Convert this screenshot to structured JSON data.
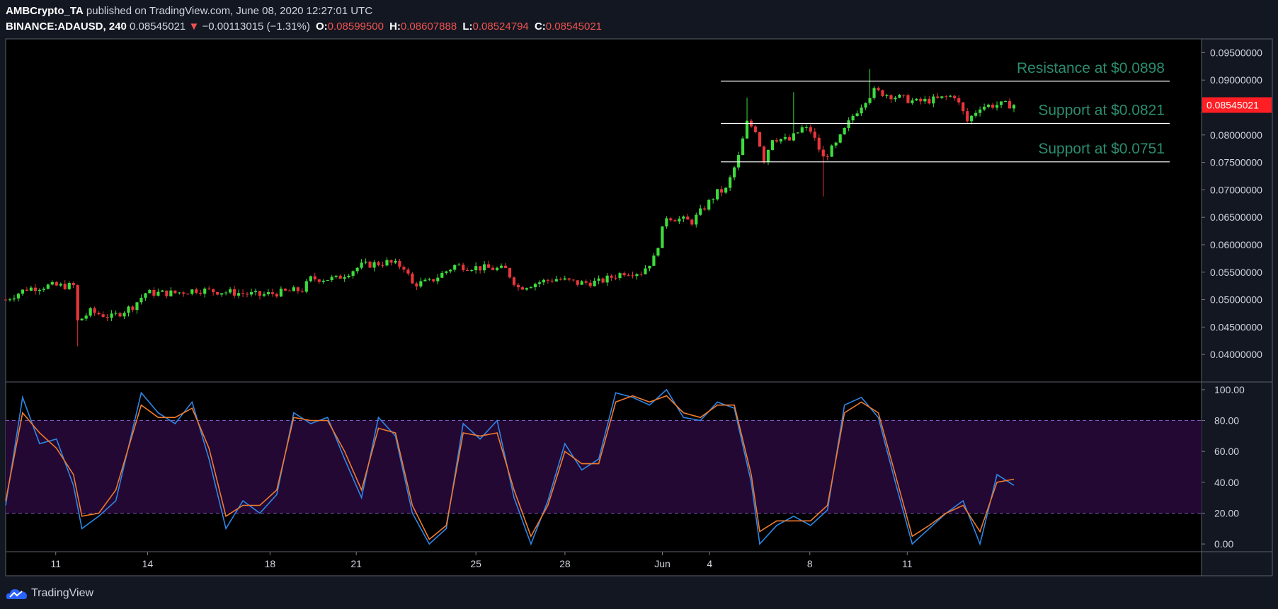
{
  "header": {
    "author": "AMBCrypto_TA",
    "published": "published on TradingView.com, June 08, 2020 12:27:01 UTC",
    "symbol": "BINANCE:ADAUSD, 240",
    "last": "0.08545021",
    "arrow": "▼",
    "change": "−0.00113015 (−1.31%)",
    "o_label": "O:",
    "o_value": "0.08599500",
    "h_label": "H:",
    "h_value": "0.08607888",
    "l_label": "L:",
    "l_value": "0.08524794",
    "c_label": "C:",
    "c_value": "0.08545021"
  },
  "footer": {
    "brand": "TradingView",
    "icon": "tradingview-cloud-icon"
  },
  "colors": {
    "background": "#131722",
    "up": "#3ddc3d",
    "down": "#e8353b",
    "k_line": "#2d87e6",
    "d_line": "#f07a2c",
    "band": "#230833",
    "level_text": "#2b8c6e",
    "price_tag": "#ff1e23"
  },
  "chart_data": [
    {
      "type": "candlestick",
      "symbol": "ADAUSD",
      "interval": "240",
      "x_tick_labels": [
        "11",
        "14",
        "18",
        "21",
        "25",
        "28",
        "Jun",
        "4",
        "8",
        "11"
      ],
      "y_tick_labels": [
        "0.09500000",
        "0.09000000",
        "0.08500000",
        "0.08000000",
        "0.07500000",
        "0.07000000",
        "0.06500000",
        "0.06000000",
        "0.05500000",
        "0.05000000",
        "0.04500000",
        "0.04000000"
      ],
      "ylim": [
        0.035,
        0.0975
      ],
      "last_price_label": "0.08545021",
      "last_price": 0.08545021,
      "levels": [
        {
          "label": "Resistance at $0.0898",
          "value": 0.0898
        },
        {
          "label": "Support at $0.0821",
          "value": 0.0821
        },
        {
          "label": "Support at $0.0751",
          "value": 0.0751
        }
      ],
      "close_path": [
        [
          0,
          0.05
        ],
        [
          5,
          0.052
        ],
        [
          10,
          0.0525
        ],
        [
          16,
          0.0525
        ],
        [
          17,
          0.046
        ],
        [
          20,
          0.0478
        ],
        [
          25,
          0.0468
        ],
        [
          30,
          0.0488
        ],
        [
          33,
          0.0512
        ],
        [
          40,
          0.0512
        ],
        [
          45,
          0.0518
        ],
        [
          55,
          0.0512
        ],
        [
          60,
          0.0508
        ],
        [
          70,
          0.0518
        ],
        [
          72,
          0.0538
        ],
        [
          78,
          0.0538
        ],
        [
          84,
          0.0562
        ],
        [
          90,
          0.0568
        ],
        [
          94,
          0.056
        ],
        [
          96,
          0.0528
        ],
        [
          100,
          0.0532
        ],
        [
          106,
          0.0562
        ],
        [
          112,
          0.0558
        ],
        [
          118,
          0.0555
        ],
        [
          121,
          0.0522
        ],
        [
          126,
          0.0532
        ],
        [
          130,
          0.0538
        ],
        [
          135,
          0.053
        ],
        [
          140,
          0.0532
        ],
        [
          146,
          0.055
        ],
        [
          150,
          0.055
        ],
        [
          153,
          0.0575
        ],
        [
          156,
          0.0652
        ],
        [
          158,
          0.0648
        ],
        [
          162,
          0.0642
        ],
        [
          168,
          0.0695
        ],
        [
          170,
          0.07
        ],
        [
          173,
          0.076
        ],
        [
          175,
          0.0822
        ],
        [
          177,
          0.081
        ],
        [
          179,
          0.0755
        ],
        [
          181,
          0.0795
        ],
        [
          185,
          0.079
        ],
        [
          188,
          0.0812
        ],
        [
          190,
          0.0808
        ],
        [
          193,
          0.0758
        ],
        [
          196,
          0.0782
        ],
        [
          200,
          0.0835
        ],
        [
          203,
          0.0865
        ],
        [
          205,
          0.088
        ],
        [
          210,
          0.087
        ],
        [
          215,
          0.086
        ],
        [
          220,
          0.0865
        ],
        [
          224,
          0.0872
        ],
        [
          227,
          0.0825
        ],
        [
          230,
          0.0852
        ],
        [
          234,
          0.0855
        ]
      ],
      "low_wicks": [
        [
          17,
          0.0415
        ],
        [
          193,
          0.0688
        ]
      ],
      "high_wicks": [
        [
          175,
          0.0868
        ],
        [
          186,
          0.0878
        ],
        [
          204,
          0.092
        ]
      ]
    },
    {
      "type": "line",
      "indicator": "stochastic",
      "y_tick_labels": [
        "100.00",
        "80.00",
        "60.00",
        "40.00",
        "20.00",
        "0.00"
      ],
      "ylim": [
        -5,
        105
      ],
      "band": [
        20,
        80
      ],
      "series": [
        {
          "role": "k",
          "points": [
            [
              0,
              25
            ],
            [
              4,
              95
            ],
            [
              8,
              65
            ],
            [
              12,
              68
            ],
            [
              16,
              38
            ],
            [
              18,
              10
            ],
            [
              22,
              18
            ],
            [
              26,
              28
            ],
            [
              32,
              98
            ],
            [
              36,
              85
            ],
            [
              40,
              78
            ],
            [
              44,
              92
            ],
            [
              48,
              55
            ],
            [
              52,
              10
            ],
            [
              56,
              28
            ],
            [
              60,
              20
            ],
            [
              64,
              32
            ],
            [
              68,
              85
            ],
            [
              72,
              78
            ],
            [
              76,
              82
            ],
            [
              80,
              55
            ],
            [
              84,
              30
            ],
            [
              88,
              82
            ],
            [
              92,
              70
            ],
            [
              96,
              20
            ],
            [
              100,
              0
            ],
            [
              104,
              10
            ],
            [
              108,
              78
            ],
            [
              112,
              68
            ],
            [
              116,
              80
            ],
            [
              120,
              30
            ],
            [
              124,
              0
            ],
            [
              128,
              28
            ],
            [
              132,
              65
            ],
            [
              136,
              48
            ],
            [
              140,
              55
            ],
            [
              144,
              98
            ],
            [
              148,
              95
            ],
            [
              152,
              90
            ],
            [
              156,
              100
            ],
            [
              160,
              82
            ],
            [
              164,
              80
            ],
            [
              168,
              92
            ],
            [
              172,
              88
            ],
            [
              176,
              40
            ],
            [
              178,
              0
            ],
            [
              182,
              12
            ],
            [
              186,
              18
            ],
            [
              190,
              12
            ],
            [
              194,
              22
            ],
            [
              198,
              90
            ],
            [
              202,
              95
            ],
            [
              206,
              82
            ],
            [
              210,
              40
            ],
            [
              214,
              0
            ],
            [
              218,
              10
            ],
            [
              222,
              20
            ],
            [
              226,
              28
            ],
            [
              230,
              0
            ],
            [
              234,
              45
            ],
            [
              238,
              38
            ]
          ]
        },
        {
          "role": "d",
          "points": [
            [
              0,
              28
            ],
            [
              4,
              85
            ],
            [
              8,
              72
            ],
            [
              12,
              62
            ],
            [
              16,
              45
            ],
            [
              18,
              18
            ],
            [
              22,
              20
            ],
            [
              26,
              35
            ],
            [
              32,
              90
            ],
            [
              36,
              82
            ],
            [
              40,
              82
            ],
            [
              44,
              88
            ],
            [
              48,
              62
            ],
            [
              52,
              18
            ],
            [
              56,
              25
            ],
            [
              60,
              25
            ],
            [
              64,
              35
            ],
            [
              68,
              82
            ],
            [
              72,
              80
            ],
            [
              76,
              80
            ],
            [
              80,
              60
            ],
            [
              84,
              35
            ],
            [
              88,
              75
            ],
            [
              92,
              72
            ],
            [
              96,
              25
            ],
            [
              100,
              3
            ],
            [
              104,
              12
            ],
            [
              108,
              72
            ],
            [
              112,
              70
            ],
            [
              116,
              72
            ],
            [
              120,
              35
            ],
            [
              124,
              5
            ],
            [
              128,
              25
            ],
            [
              132,
              60
            ],
            [
              136,
              52
            ],
            [
              140,
              52
            ],
            [
              144,
              92
            ],
            [
              148,
              96
            ],
            [
              152,
              92
            ],
            [
              156,
              96
            ],
            [
              160,
              85
            ],
            [
              164,
              82
            ],
            [
              168,
              90
            ],
            [
              172,
              90
            ],
            [
              176,
              45
            ],
            [
              178,
              8
            ],
            [
              182,
              15
            ],
            [
              186,
              15
            ],
            [
              190,
              15
            ],
            [
              194,
              25
            ],
            [
              198,
              85
            ],
            [
              202,
              92
            ],
            [
              206,
              85
            ],
            [
              210,
              45
            ],
            [
              214,
              5
            ],
            [
              218,
              12
            ],
            [
              222,
              20
            ],
            [
              226,
              25
            ],
            [
              230,
              8
            ],
            [
              234,
              40
            ],
            [
              238,
              42
            ]
          ]
        }
      ]
    }
  ]
}
